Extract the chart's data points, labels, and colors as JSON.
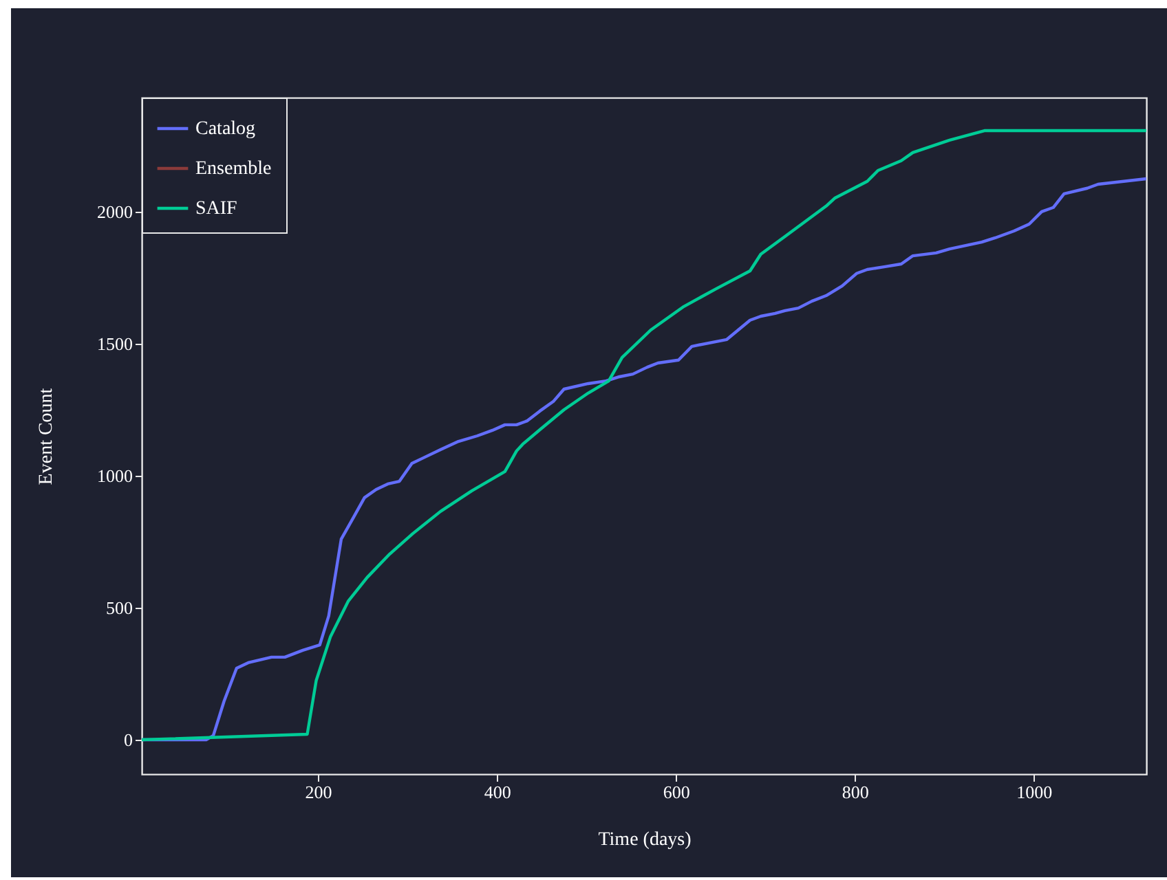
{
  "chart_data": {
    "type": "line",
    "xlabel": "Time (days)",
    "ylabel": "Event Count",
    "xlim": [
      3,
      1126
    ],
    "ylim": [
      -130,
      2432
    ],
    "xticks": [
      200,
      400,
      600,
      800,
      1000
    ],
    "yticks": [
      0,
      500,
      1000,
      1500,
      2000
    ],
    "grid": false,
    "legend": "top left",
    "line_style": "solid",
    "marker": "none",
    "series": [
      {
        "name": "Catalog",
        "color": "#636efa",
        "x": [
          3,
          75,
          83,
          95,
          109,
          122,
          148,
          163,
          183,
          202,
          212,
          226,
          240,
          252,
          265,
          278,
          291,
          305,
          318,
          337,
          357,
          378,
          395,
          409,
          422,
          434,
          448,
          463,
          475,
          502,
          522,
          537,
          552,
          568,
          580,
          603,
          618,
          657,
          683,
          695,
          711,
          722,
          737,
          752,
          768,
          786,
          802,
          814,
          834,
          852,
          865,
          891,
          906,
          942,
          957,
          978,
          995,
          1009,
          1022,
          1034,
          1060,
          1072,
          1126
        ],
        "values": [
          0,
          0,
          16,
          146,
          271,
          292,
          313,
          313,
          339,
          359,
          469,
          760,
          844,
          917,
          948,
          969,
          979,
          1047,
          1068,
          1099,
          1130,
          1151,
          1172,
          1193,
          1193,
          1208,
          1245,
          1281,
          1328,
          1349,
          1359,
          1375,
          1385,
          1411,
          1427,
          1438,
          1490,
          1516,
          1589,
          1604,
          1615,
          1625,
          1635,
          1661,
          1682,
          1719,
          1766,
          1781,
          1792,
          1802,
          1833,
          1844,
          1859,
          1885,
          1901,
          1927,
          1953,
          2000,
          2016,
          2068,
          2089,
          2104,
          2125
        ]
      },
      {
        "name": "Ensemble",
        "color": "#8b3a3a"
      },
      {
        "name": "SAIF",
        "color": "#00cc96",
        "x": [
          3,
          188,
          198,
          214,
          234,
          255,
          280,
          306,
          337,
          372,
          409,
          422,
          429,
          449,
          475,
          502,
          525,
          540,
          572,
          609,
          645,
          683,
          695,
          722,
          768,
          778,
          814,
          826,
          852,
          865,
          906,
          945,
          1126
        ],
        "values": [
          0,
          21,
          224,
          391,
          526,
          615,
          703,
          781,
          865,
          943,
          1016,
          1094,
          1120,
          1177,
          1250,
          1313,
          1359,
          1448,
          1552,
          1641,
          1708,
          1776,
          1839,
          1906,
          2021,
          2052,
          2115,
          2156,
          2193,
          2224,
          2271,
          2307,
          2307
        ]
      }
    ]
  }
}
